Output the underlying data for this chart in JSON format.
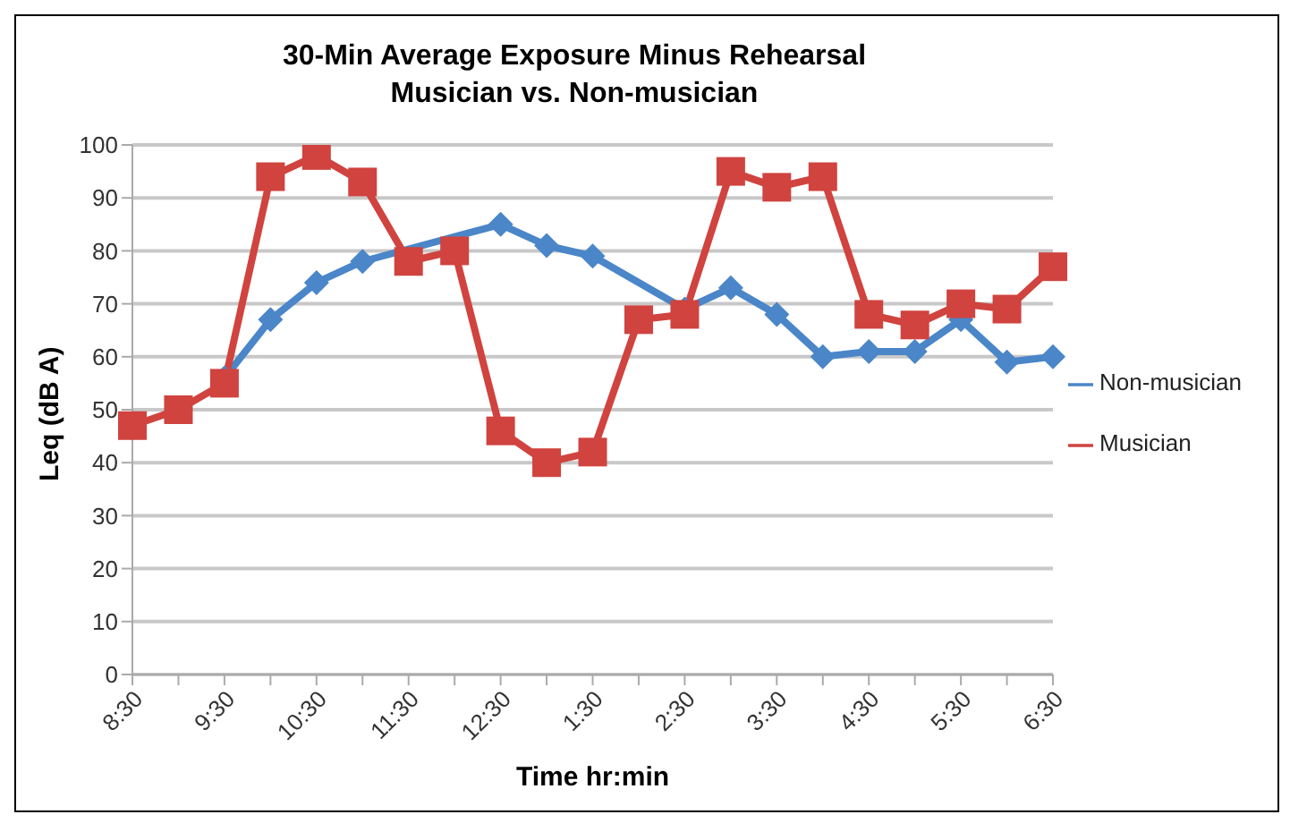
{
  "chart_data": {
    "type": "line",
    "title": "30-Min Average Exposure Minus Rehearsal\nMusician vs. Non-musician",
    "xlabel": "Time hr:min",
    "ylabel": "Leq (dB A)",
    "categories": [
      "8:30",
      null,
      "9:30",
      null,
      "10:30",
      null,
      "11:30",
      null,
      "12:30",
      null,
      "1:30",
      null,
      "2:30",
      null,
      "3:30",
      null,
      "4:30",
      null,
      "5:30",
      null,
      "6:30"
    ],
    "series": [
      {
        "name": "Non-musician",
        "color": "#4a86c8",
        "marker": "diamond",
        "values": [
          null,
          null,
          56,
          67,
          74,
          78,
          null,
          null,
          85,
          81,
          79,
          null,
          69,
          73,
          68,
          60,
          61,
          61,
          67,
          59,
          60
        ]
      },
      {
        "name": "Musician",
        "color": "#d0433f",
        "marker": "square",
        "values": [
          47,
          50,
          55,
          94,
          98,
          93,
          78,
          80,
          46,
          40,
          42,
          67,
          68,
          95,
          92,
          94,
          68,
          66,
          70,
          69,
          77
        ]
      }
    ],
    "ylim": [
      0,
      100
    ],
    "yticks": [
      0,
      10,
      20,
      30,
      40,
      50,
      60,
      70,
      80,
      90,
      100
    ],
    "grid": "y",
    "legend": "right",
    "line_style": "solid"
  }
}
